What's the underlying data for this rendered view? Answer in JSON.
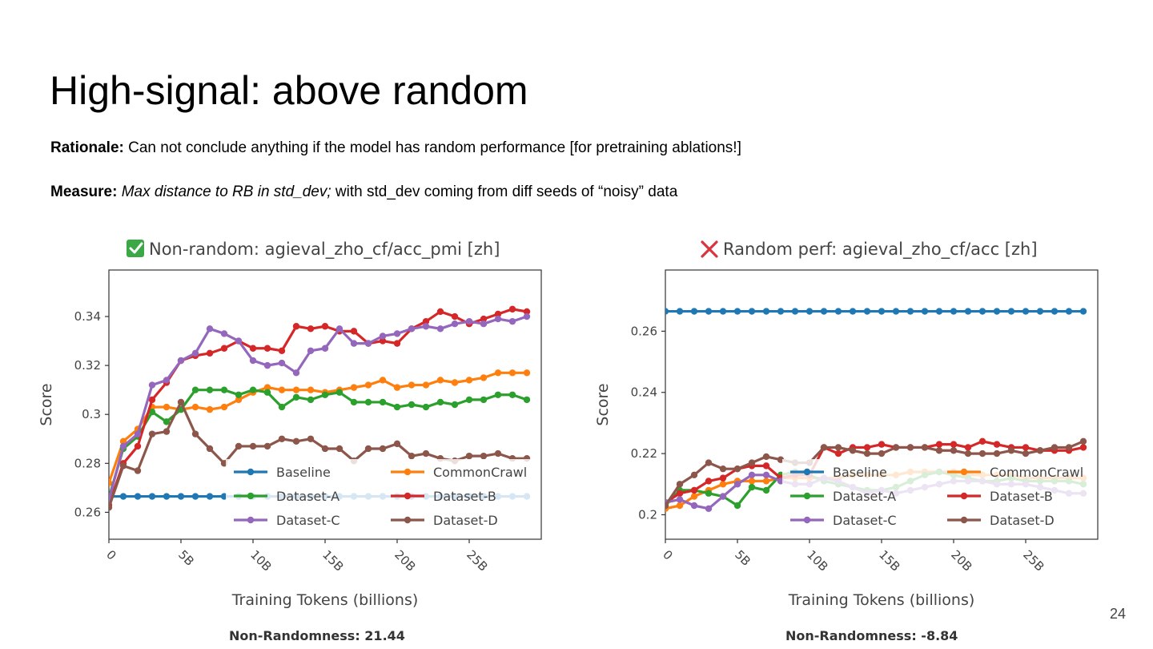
{
  "slide": {
    "title": "High-signal: above random",
    "rationale_label": "Rationale:",
    "rationale_text": "Can not conclude anything if the model has random performance [for pretraining ablations!]",
    "measure_label": "Measure:",
    "measure_italic": "Max distance to RB in std_dev;",
    "measure_text": "with std_dev coming from diff seeds of “noisy” data",
    "page_number": "24"
  },
  "colors": {
    "Baseline": "#1f77b4",
    "CommonCrawl": "#ff7f0e",
    "Dataset-A": "#2ca02c",
    "Dataset-B": "#d62728",
    "Dataset-C": "#9467bd",
    "Dataset-D": "#8c564b",
    "check_mark": "#3aa845",
    "cross_mark": "#d9343f"
  },
  "chart_data": [
    {
      "type": "line",
      "title": "Non-random: agieval_zho_cf/acc_pmi [zh]",
      "title_icon": "check-mark-icon",
      "xlabel": "Training Tokens (billions)",
      "ylabel": "Score",
      "xlim": [
        0,
        30
      ],
      "ylim": [
        0.249,
        0.359
      ],
      "xticks": [
        0,
        5,
        10,
        15,
        20,
        25
      ],
      "xtick_labels": [
        "0",
        "5B",
        "10B",
        "15B",
        "20B",
        "25B"
      ],
      "yticks": [
        0.26,
        0.28,
        0.3,
        0.32,
        0.34
      ],
      "ytick_labels": [
        "0.26",
        "0.28",
        "0.3",
        "0.32",
        "0.34"
      ],
      "grid": false,
      "legend_position": "lower-right",
      "footer": "Non-Randomness: 21.44",
      "x": [
        0,
        1,
        2,
        3,
        4,
        5,
        6,
        7,
        8,
        9,
        10,
        11,
        12,
        13,
        14,
        15,
        16,
        17,
        18,
        19,
        20,
        21,
        22,
        23,
        24,
        25,
        26,
        27,
        28,
        29
      ],
      "series": [
        {
          "name": "Baseline",
          "values": [
            0.2665,
            0.2665,
            0.2665,
            0.2665,
            0.2665,
            0.2665,
            0.2665,
            0.2665,
            0.2665,
            0.2665,
            0.2665,
            0.2665,
            0.2665,
            0.2665,
            0.2665,
            0.2665,
            0.2665,
            0.2665,
            0.2665,
            0.2665,
            0.2665,
            0.2665,
            0.2665,
            0.2665,
            0.2665,
            0.2665,
            0.2665,
            0.2665,
            0.2665,
            0.2665
          ]
        },
        {
          "name": "CommonCrawl",
          "values": [
            0.272,
            0.289,
            0.294,
            0.303,
            0.303,
            0.302,
            0.303,
            0.302,
            0.303,
            0.306,
            0.309,
            0.311,
            0.31,
            0.31,
            0.31,
            0.309,
            0.31,
            0.311,
            0.312,
            0.314,
            0.311,
            0.312,
            0.312,
            0.314,
            0.313,
            0.314,
            0.315,
            0.317,
            0.317,
            0.317
          ]
        },
        {
          "name": "Dataset-A",
          "values": [
            0.266,
            0.286,
            0.291,
            0.301,
            0.297,
            0.302,
            0.31,
            0.31,
            0.31,
            0.308,
            0.31,
            0.309,
            0.303,
            0.307,
            0.306,
            0.308,
            0.309,
            0.305,
            0.305,
            0.305,
            0.303,
            0.304,
            0.303,
            0.305,
            0.304,
            0.306,
            0.306,
            0.308,
            0.308,
            0.306
          ]
        },
        {
          "name": "Dataset-B",
          "values": [
            0.263,
            0.28,
            0.287,
            0.306,
            0.313,
            0.322,
            0.324,
            0.325,
            0.327,
            0.33,
            0.327,
            0.327,
            0.326,
            0.336,
            0.335,
            0.336,
            0.334,
            0.334,
            0.329,
            0.33,
            0.329,
            0.335,
            0.338,
            0.342,
            0.34,
            0.337,
            0.339,
            0.341,
            0.343,
            0.342
          ]
        },
        {
          "name": "Dataset-C",
          "values": [
            0.265,
            0.287,
            0.292,
            0.312,
            0.314,
            0.322,
            0.325,
            0.335,
            0.333,
            0.33,
            0.322,
            0.32,
            0.321,
            0.317,
            0.326,
            0.327,
            0.335,
            0.329,
            0.329,
            0.332,
            0.333,
            0.335,
            0.336,
            0.335,
            0.337,
            0.338,
            0.337,
            0.339,
            0.338,
            0.34
          ]
        },
        {
          "name": "Dataset-D",
          "values": [
            0.262,
            0.279,
            0.277,
            0.292,
            0.293,
            0.305,
            0.292,
            0.286,
            0.28,
            0.287,
            0.287,
            0.287,
            0.29,
            0.289,
            0.29,
            0.286,
            0.286,
            0.281,
            0.286,
            0.286,
            0.288,
            0.283,
            0.284,
            0.282,
            0.281,
            0.283,
            0.283,
            0.284,
            0.282,
            0.282
          ]
        }
      ]
    },
    {
      "type": "line",
      "title": "Random perf: agieval_zho_cf/acc [zh]",
      "title_icon": "cross-mark-icon",
      "xlabel": "Training Tokens (billions)",
      "ylabel": "Score",
      "xlim": [
        0,
        30
      ],
      "ylim": [
        0.192,
        0.28
      ],
      "xticks": [
        0,
        5,
        10,
        15,
        20,
        25
      ],
      "xtick_labels": [
        "0",
        "5B",
        "10B",
        "15B",
        "20B",
        "25B"
      ],
      "yticks": [
        0.2,
        0.22,
        0.24,
        0.26
      ],
      "ytick_labels": [
        "0.2",
        "0.22",
        "0.24",
        "0.26"
      ],
      "grid": false,
      "legend_position": "lower-right",
      "footer": "Non-Randomness: -8.84",
      "x": [
        0,
        1,
        2,
        3,
        4,
        5,
        6,
        7,
        8,
        9,
        10,
        11,
        12,
        13,
        14,
        15,
        16,
        17,
        18,
        19,
        20,
        21,
        22,
        23,
        24,
        25,
        26,
        27,
        28,
        29
      ],
      "series": [
        {
          "name": "Baseline",
          "values": [
            0.2665,
            0.2665,
            0.2665,
            0.2665,
            0.2665,
            0.2665,
            0.2665,
            0.2665,
            0.2665,
            0.2665,
            0.2665,
            0.2665,
            0.2665,
            0.2665,
            0.2665,
            0.2665,
            0.2665,
            0.2665,
            0.2665,
            0.2665,
            0.2665,
            0.2665,
            0.2665,
            0.2665,
            0.2665,
            0.2665,
            0.2665,
            0.2665,
            0.2665,
            0.2665
          ]
        },
        {
          "name": "CommonCrawl",
          "values": [
            0.202,
            0.203,
            0.206,
            0.208,
            0.21,
            0.211,
            0.211,
            0.211,
            0.212,
            0.212,
            0.212,
            0.212,
            0.212,
            0.213,
            0.213,
            0.213,
            0.213,
            0.214,
            0.214,
            0.214,
            0.214,
            0.213,
            0.213,
            0.213,
            0.213,
            0.212,
            0.212,
            0.212,
            0.212,
            0.212
          ]
        },
        {
          "name": "Dataset-A",
          "values": [
            0.203,
            0.208,
            0.208,
            0.207,
            0.206,
            0.203,
            0.209,
            0.208,
            0.213,
            0.214,
            0.213,
            0.211,
            0.21,
            0.209,
            0.208,
            0.208,
            0.209,
            0.211,
            0.213,
            0.214,
            0.213,
            0.212,
            0.211,
            0.211,
            0.212,
            0.211,
            0.211,
            0.211,
            0.211,
            0.21
          ]
        },
        {
          "name": "Dataset-B",
          "values": [
            0.204,
            0.207,
            0.208,
            0.211,
            0.212,
            0.215,
            0.216,
            0.216,
            0.212,
            0.213,
            0.213,
            0.222,
            0.22,
            0.222,
            0.222,
            0.223,
            0.222,
            0.222,
            0.222,
            0.223,
            0.223,
            0.222,
            0.224,
            0.223,
            0.222,
            0.222,
            0.221,
            0.221,
            0.221,
            0.222
          ]
        },
        {
          "name": "Dataset-C",
          "values": [
            0.204,
            0.205,
            0.203,
            0.202,
            0.206,
            0.21,
            0.213,
            0.213,
            0.211,
            0.21,
            0.21,
            0.212,
            0.211,
            0.209,
            0.207,
            0.208,
            0.207,
            0.208,
            0.209,
            0.21,
            0.211,
            0.211,
            0.211,
            0.21,
            0.21,
            0.21,
            0.209,
            0.208,
            0.207,
            0.207
          ]
        },
        {
          "name": "Dataset-D",
          "values": [
            0.203,
            0.21,
            0.213,
            0.217,
            0.215,
            0.215,
            0.217,
            0.219,
            0.218,
            0.217,
            0.217,
            0.222,
            0.222,
            0.221,
            0.22,
            0.22,
            0.222,
            0.222,
            0.222,
            0.221,
            0.221,
            0.22,
            0.22,
            0.22,
            0.221,
            0.22,
            0.221,
            0.222,
            0.222,
            0.224
          ]
        }
      ]
    }
  ]
}
